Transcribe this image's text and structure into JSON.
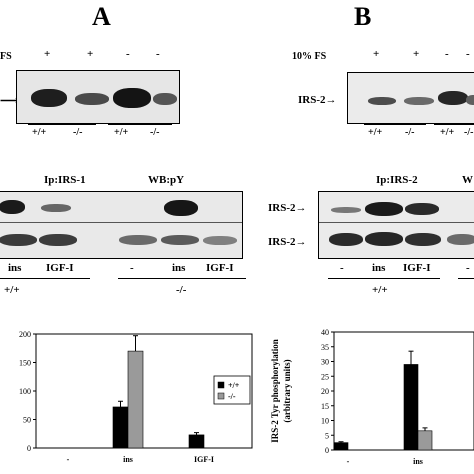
{
  "panel_a": {
    "letter": "A",
    "fs_label": "FS",
    "fs_signs": [
      "+",
      "+",
      "-",
      "-"
    ],
    "geno_lanes": [
      "+/+",
      "-/-",
      "+/+",
      "-/-"
    ],
    "ip_label": "Ip:IRS-1",
    "wb_label": "WB:pY",
    "treatments": [
      "ins",
      "IGF-I",
      "-",
      "ins",
      "IGF-I"
    ],
    "groups": [
      "+/+",
      "-/-"
    ]
  },
  "panel_b": {
    "letter": "B",
    "fs_label": "10% FS",
    "fs_signs": [
      "+",
      "+",
      "-",
      "-"
    ],
    "protein_label": "IRS-2",
    "geno_lanes": [
      "+/+",
      "-/-",
      "+/+",
      "-/-"
    ],
    "ip_label": "Ip:IRS-2",
    "wb_label_partial": "W",
    "blot_labels": [
      "IRS-2",
      "IRS-2"
    ],
    "treatments": [
      "-",
      "ins",
      "IGF-I",
      "-"
    ],
    "groups": [
      "+/+"
    ]
  },
  "chart_data": [
    {
      "type": "bar",
      "categories": [
        "-",
        "ins",
        "IGF-I"
      ],
      "series": [
        {
          "name": "+/+",
          "values": [
            0,
            72,
            23
          ],
          "errors": [
            0,
            10,
            4
          ]
        },
        {
          "name": "-/-",
          "values": [
            0,
            170,
            0
          ],
          "errors": [
            0,
            27,
            0
          ]
        }
      ],
      "ylim": [
        0,
        200
      ],
      "yticks": [
        0,
        50,
        100,
        150,
        200
      ],
      "legend": "right",
      "colors": {
        "+/+": "#000000",
        "-/-": "#9a9a9a"
      }
    },
    {
      "type": "bar",
      "categories": [
        "-",
        "ins"
      ],
      "series": [
        {
          "name": "+/+",
          "values": [
            2.5,
            29
          ],
          "errors": [
            0.3,
            4.5
          ]
        },
        {
          "name": "-/-",
          "values": [
            0,
            6.5
          ],
          "errors": [
            0,
            1
          ]
        }
      ],
      "ylabel": "IRS-2 Tyr phosphorylation (arbitrary units)",
      "ylabel_lines": [
        "IRS-2 Tyr phosphorylation",
        "(arbitrary units)"
      ],
      "ylim": [
        0,
        40
      ],
      "yticks": [
        0,
        5,
        10,
        15,
        20,
        25,
        30,
        35,
        40
      ],
      "colors": {
        "+/+": "#000000",
        "-/-": "#9a9a9a"
      }
    }
  ]
}
